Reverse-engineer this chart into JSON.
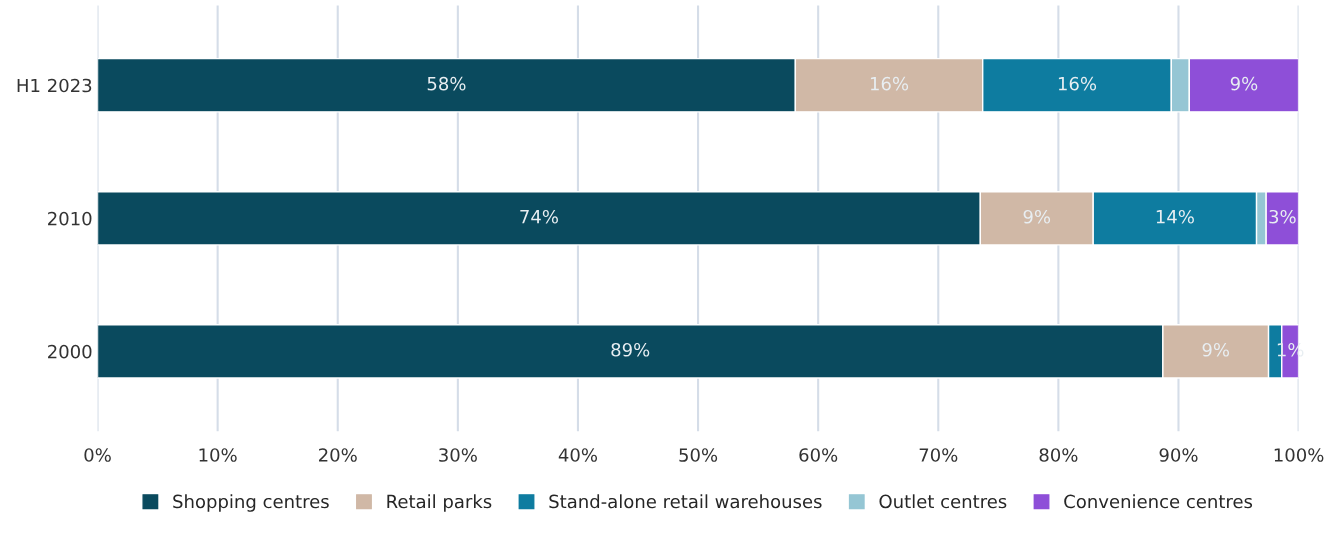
{
  "chart_data": {
    "type": "bar",
    "orientation": "horizontal",
    "stacked": true,
    "categories": [
      "H1 2023",
      "2010",
      "2000"
    ],
    "series": [
      {
        "name": "Shopping centres",
        "color": "#0a4a5e",
        "values": [
          58.1,
          73.5,
          88.7
        ],
        "value_labels": [
          "58%",
          "74%",
          "89%"
        ]
      },
      {
        "name": "Retail parks",
        "color": "#d0b8a6",
        "values": [
          15.6,
          9.4,
          8.8
        ],
        "value_labels": [
          "16%",
          "9%",
          "9%"
        ]
      },
      {
        "name": "Stand-alone retail warehouses",
        "color": "#0e7ca0",
        "values": [
          15.7,
          13.6,
          1.1
        ],
        "value_labels": [
          "16%",
          "14%",
          null
        ]
      },
      {
        "name": "Outlet centres",
        "color": "#95c6d4",
        "values": [
          1.5,
          0.8,
          0
        ],
        "value_labels": [
          null,
          null,
          null
        ]
      },
      {
        "name": "Convenience centres",
        "color": "#8e4fd8",
        "values": [
          9.1,
          2.7,
          1.4
        ],
        "value_labels": [
          "9%",
          "3%",
          "1%"
        ]
      }
    ],
    "xlim": [
      0,
      100
    ],
    "xticks": [
      {
        "value": 0,
        "label": "0%"
      },
      {
        "value": 10,
        "label": "10%"
      },
      {
        "value": 20,
        "label": "20%"
      },
      {
        "value": 30,
        "label": "30%"
      },
      {
        "value": 40,
        "label": "40%"
      },
      {
        "value": 50,
        "label": "50%"
      },
      {
        "value": 60,
        "label": "60%"
      },
      {
        "value": 70,
        "label": "70%"
      },
      {
        "value": 80,
        "label": "80%"
      },
      {
        "value": 90,
        "label": "90%"
      },
      {
        "value": 100,
        "label": "100%"
      }
    ],
    "grid": "x",
    "legend": "bottom"
  }
}
